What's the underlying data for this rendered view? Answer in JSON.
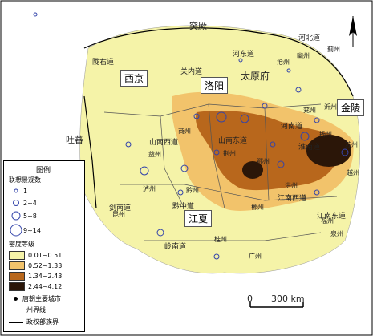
{
  "neighbors": {
    "north": "突厥",
    "west": "吐蕃"
  },
  "callouts": [
    {
      "id": "xijing",
      "label": "西京"
    },
    {
      "id": "luoyang",
      "label": "洛阳"
    },
    {
      "id": "taiyuan",
      "label": "太原府"
    },
    {
      "id": "jinling",
      "label": "金陵"
    },
    {
      "id": "jiangxia",
      "label": "江夏"
    }
  ],
  "places": [
    "幽州",
    "蓟州",
    "沧州",
    "兖州",
    "沂州",
    "商州",
    "荆州",
    "鄂州",
    "洪州",
    "郴州",
    "益州",
    "泸州",
    "黔州",
    "昆州",
    "桂州",
    "广州",
    "泉州",
    "扬州",
    "苏州",
    "越州",
    "福州"
  ],
  "regions": [
    "河北道",
    "河东道",
    "关内道",
    "陇右道",
    "山南西道",
    "山南东道",
    "河南道",
    "淮南道",
    "江南西道",
    "江南东道",
    "剑南道",
    "黔中道",
    "岭南道"
  ],
  "legend": {
    "title": "图例",
    "symbol_title": "联想景观数",
    "symbols": [
      "1",
      "2~4",
      "5~8",
      "9~14"
    ],
    "density_title": "密度等级",
    "density": [
      {
        "label": "0.01~0.51",
        "color": "#f5f3a8"
      },
      {
        "label": "0.52~1.33",
        "color": "#f2c36b"
      },
      {
        "label": "1.34~2.43",
        "color": "#b8671c"
      },
      {
        "label": "2.44~4.12",
        "color": "#2b1608"
      }
    ],
    "city": "唐朝主要城市",
    "prov_line": "州界线",
    "state_line": "政权部族界"
  },
  "scale": {
    "zero": "0",
    "label": "300 km"
  }
}
